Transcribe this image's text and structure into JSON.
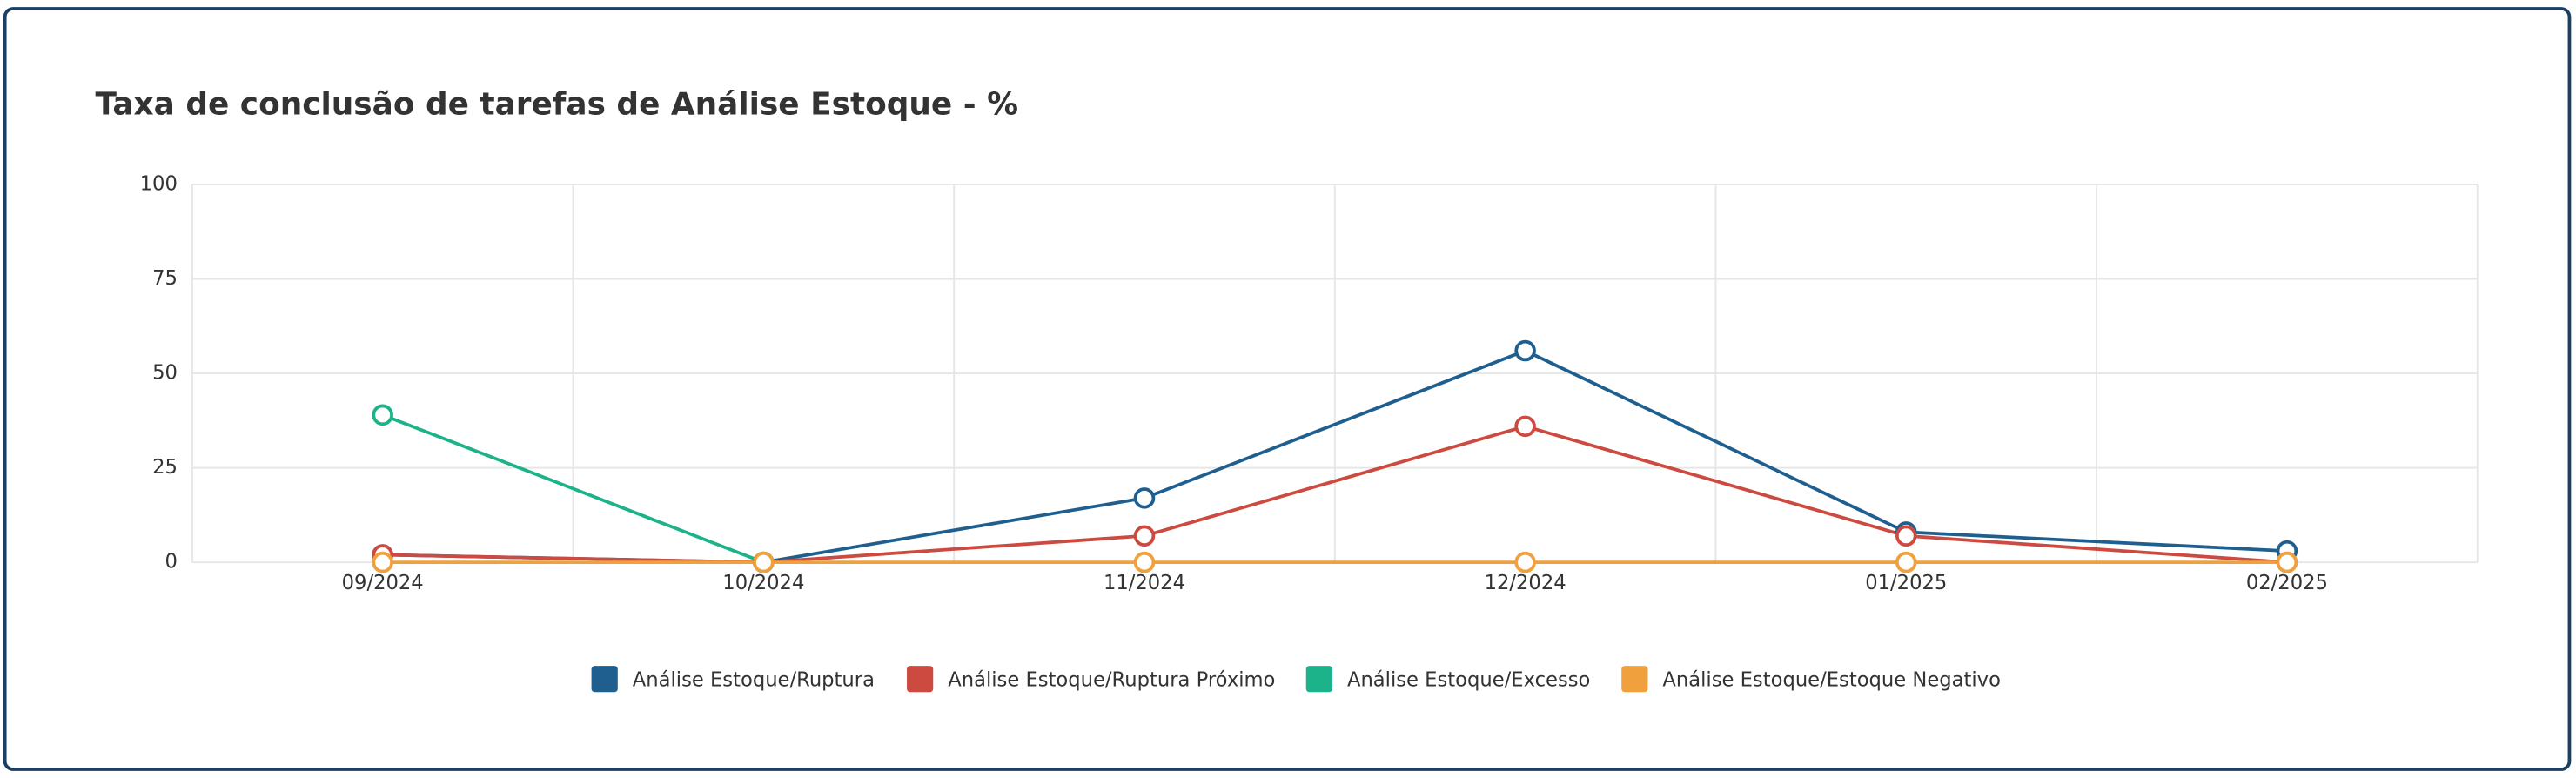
{
  "chart_data": {
    "type": "line",
    "title": "Taxa de conclusão de tarefas de Análise Estoque - %",
    "categories": [
      "09/2024",
      "10/2024",
      "11/2024",
      "12/2024",
      "01/2025",
      "02/2025"
    ],
    "series": [
      {
        "name": "Análise Estoque/Ruptura",
        "color": "#1f5f8f",
        "values": [
          2,
          0,
          17,
          56,
          8,
          3
        ]
      },
      {
        "name": "Análise Estoque/Ruptura Próximo",
        "color": "#cc4a3f",
        "values": [
          2,
          0,
          7,
          36,
          7,
          0
        ]
      },
      {
        "name": "Análise Estoque/Excesso",
        "color": "#1db38a",
        "values": [
          39,
          0,
          null,
          null,
          null,
          null
        ]
      },
      {
        "name": "Análise Estoque/Estoque Negativo",
        "color": "#f0a03c",
        "values": [
          0,
          0,
          0,
          0,
          0,
          0
        ]
      }
    ],
    "ylim": [
      0,
      100
    ],
    "yticks": [
      0,
      25,
      50,
      75,
      100
    ],
    "grid": true,
    "legend": "bottom"
  }
}
